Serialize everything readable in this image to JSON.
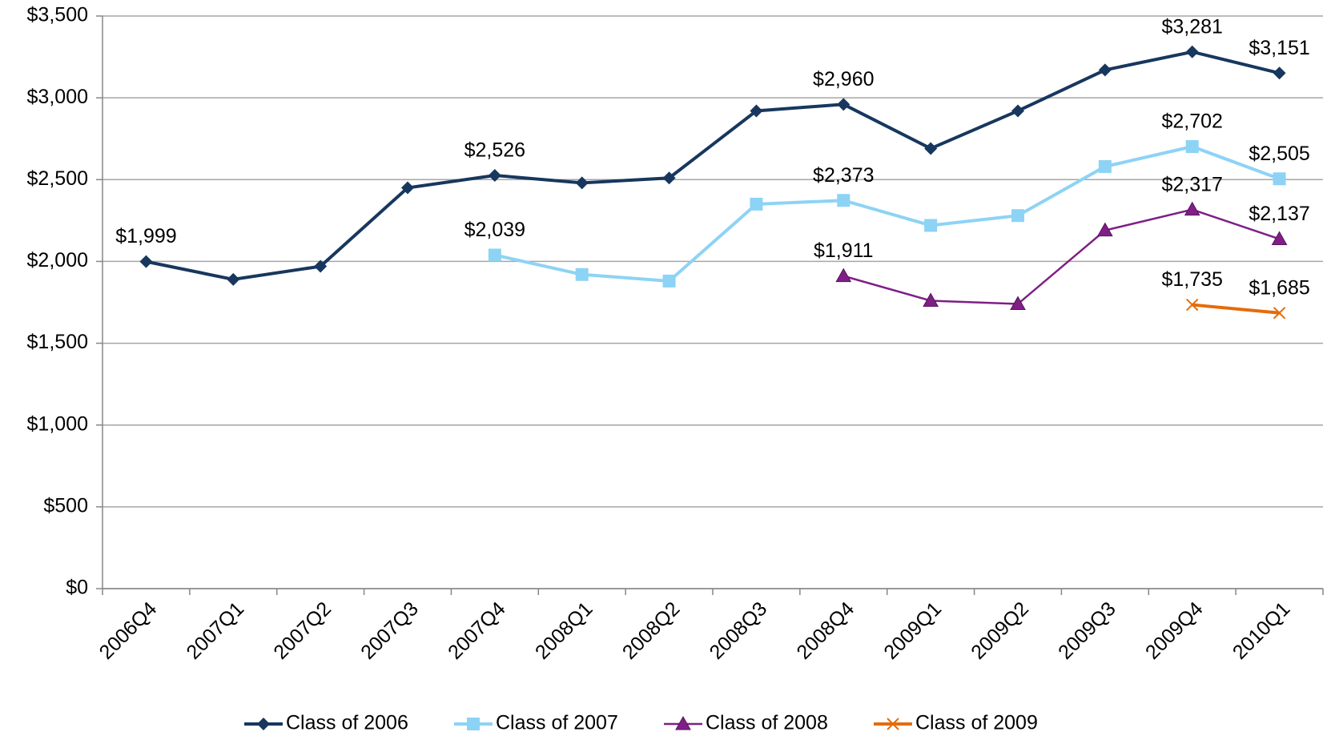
{
  "chart_data": {
    "type": "line",
    "categories": [
      "2006Q4",
      "2007Q1",
      "2007Q2",
      "2007Q3",
      "2007Q4",
      "2008Q1",
      "2008Q2",
      "2008Q3",
      "2008Q4",
      "2009Q1",
      "2009Q2",
      "2009Q3",
      "2009Q4",
      "2010Q1"
    ],
    "series": [
      {
        "name": "Class of 2006",
        "color": "#17375e",
        "marker": "diamond",
        "values": [
          1999,
          1890,
          1970,
          2450,
          2526,
          2480,
          2510,
          2920,
          2960,
          2690,
          2920,
          3170,
          3281,
          3151
        ],
        "value_labels": [
          "$1,999",
          null,
          null,
          null,
          "$2,526",
          null,
          null,
          null,
          "$2,960",
          null,
          null,
          null,
          "$3,281",
          "$3,151"
        ]
      },
      {
        "name": "Class of 2007",
        "color": "#8dd3f5",
        "marker": "square",
        "values": [
          null,
          null,
          null,
          null,
          2039,
          1920,
          1880,
          2350,
          2373,
          2220,
          2280,
          2580,
          2702,
          2505
        ],
        "value_labels": [
          null,
          null,
          null,
          null,
          "$2,039",
          null,
          null,
          null,
          "$2,373",
          null,
          null,
          null,
          "$2,702",
          "$2,505"
        ]
      },
      {
        "name": "Class of 2008",
        "color": "#7f1f86",
        "marker": "triangle",
        "values": [
          null,
          null,
          null,
          null,
          null,
          null,
          null,
          null,
          1911,
          1760,
          1740,
          2190,
          2317,
          2137
        ],
        "value_labels": [
          null,
          null,
          null,
          null,
          null,
          null,
          null,
          null,
          "$1,911",
          null,
          null,
          null,
          "$2,317",
          "$2,137"
        ]
      },
      {
        "name": "Class of 2009",
        "color": "#e46c0a",
        "marker": "x",
        "values": [
          null,
          null,
          null,
          null,
          null,
          null,
          null,
          null,
          null,
          null,
          null,
          null,
          1735,
          1685
        ],
        "value_labels": [
          null,
          null,
          null,
          null,
          null,
          null,
          null,
          null,
          null,
          null,
          null,
          null,
          "$1,735",
          "$1,685"
        ]
      }
    ],
    "ylim": [
      0,
      3500
    ],
    "yticks": [
      {
        "value": 0,
        "label": "$0"
      },
      {
        "value": 500,
        "label": "$500"
      },
      {
        "value": 1000,
        "label": "$1,000"
      },
      {
        "value": 1500,
        "label": "$1,500"
      },
      {
        "value": 2000,
        "label": "$2,000"
      },
      {
        "value": 2500,
        "label": "$2,500"
      },
      {
        "value": 3000,
        "label": "$3,000"
      },
      {
        "value": 3500,
        "label": "$3,500"
      }
    ],
    "grid": true,
    "legend": "bottom"
  }
}
